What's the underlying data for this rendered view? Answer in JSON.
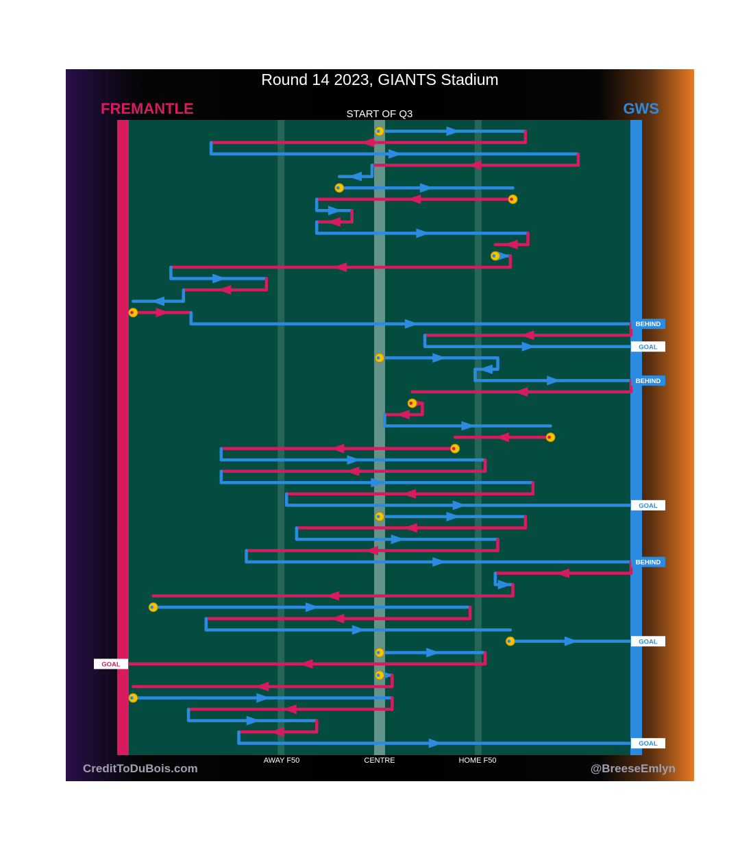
{
  "header": {
    "title": "Round 14 2023, GIANTS Stadium",
    "team_left": "FREMANTLE",
    "team_right": "GWS",
    "quarter_label": "START OF Q3"
  },
  "footer": {
    "credit_left": "CreditToDuBois.com",
    "credit_right": "@BreeseEmlyn"
  },
  "colors": {
    "fremantle": "#d81b5f",
    "gws": "#2b8be0",
    "field": "#034c3f",
    "stoppage": "#f5c400",
    "tag_bg": "#ffffff"
  },
  "chart_data": {
    "type": "possession-chain",
    "title": "Round 14 2023, GIANTS Stadium",
    "quarter": "START OF Q3",
    "x_axis": {
      "description": "field position, 0 = Fremantle goal, 100 = GWS goal",
      "range": [
        0,
        100
      ],
      "zone_labels": [
        {
          "label": "AWAY F50",
          "x": 30.4
        },
        {
          "label": "CENTRE",
          "x": 50.0
        },
        {
          "label": "HOME F50",
          "x": 69.6
        }
      ]
    },
    "chains": [
      {
        "team": "GWS",
        "segments": [
          {
            "from": 50,
            "to": 79
          }
        ],
        "start": "stoppage"
      },
      {
        "team": "Fremantle",
        "segments": [
          {
            "from": 79,
            "to": 16.5
          }
        ]
      },
      {
        "team": "GWS",
        "segments": [
          {
            "from": 16.5,
            "to": 89.5
          }
        ]
      },
      {
        "team": "Fremantle",
        "segments": [
          {
            "from": 89.5,
            "to": 48.5
          }
        ]
      },
      {
        "team": "GWS",
        "segments": [
          {
            "from": 48.5,
            "to": 42
          }
        ]
      },
      {
        "team": "GWS",
        "segments": [
          {
            "from": 42,
            "to": 76.5
          }
        ],
        "start": "stoppage"
      },
      {
        "team": "Fremantle",
        "segments": [
          {
            "from": 76.5,
            "to": 37.5
          }
        ],
        "start": "stoppage"
      },
      {
        "team": "GWS",
        "segments": [
          {
            "from": 37.5,
            "to": 44.5
          }
        ]
      },
      {
        "team": "Fremantle",
        "segments": [
          {
            "from": 44.5,
            "to": 37.5
          }
        ]
      },
      {
        "team": "GWS",
        "segments": [
          {
            "from": 37.5,
            "to": 79.5
          }
        ]
      },
      {
        "team": "Fremantle",
        "segments": [
          {
            "from": 79.5,
            "to": 73
          }
        ]
      },
      {
        "team": "GWS",
        "segments": [
          {
            "from": 73,
            "to": 76
          }
        ],
        "start": "stoppage"
      },
      {
        "team": "Fremantle",
        "segments": [
          {
            "from": 76,
            "to": 8.5
          }
        ]
      },
      {
        "team": "GWS",
        "segments": [
          {
            "from": 8.5,
            "to": 27.5
          }
        ]
      },
      {
        "team": "Fremantle",
        "segments": [
          {
            "from": 27.5,
            "to": 11
          }
        ]
      },
      {
        "team": "GWS",
        "segments": [
          {
            "from": 11,
            "to": 1
          }
        ]
      },
      {
        "team": "Fremantle",
        "segments": [
          {
            "from": 1,
            "to": 12.5
          }
        ],
        "start": "stoppage"
      },
      {
        "team": "GWS",
        "segments": [
          {
            "from": 12.5,
            "to": 100
          }
        ],
        "end": "BEHIND"
      },
      {
        "team": "Fremantle",
        "segments": [
          {
            "from": 100,
            "to": 59
          }
        ]
      },
      {
        "team": "GWS",
        "segments": [
          {
            "from": 59,
            "to": 100
          }
        ],
        "end": "GOAL"
      },
      {
        "team": "GWS",
        "segments": [
          {
            "from": 50,
            "to": 73.5
          }
        ],
        "start": "stoppage"
      },
      {
        "team": "GWS",
        "segments": [
          {
            "from": 73.5,
            "to": 69
          }
        ]
      },
      {
        "team": "GWS",
        "segments": [
          {
            "from": 69,
            "to": 100
          }
        ],
        "end": "BEHIND"
      },
      {
        "team": "Fremantle",
        "segments": [
          {
            "from": 100,
            "to": 56.5
          }
        ]
      },
      {
        "team": "Fremantle",
        "segments": [
          {
            "from": 56.5,
            "to": 58.5
          }
        ],
        "start": "stoppage"
      },
      {
        "team": "Fremantle",
        "segments": [
          {
            "from": 58.5,
            "to": 51
          }
        ]
      },
      {
        "team": "GWS",
        "segments": [
          {
            "from": 51,
            "to": 84
          }
        ]
      },
      {
        "team": "Fremantle",
        "segments": [
          {
            "from": 84,
            "to": 65
          }
        ],
        "start": "stoppage"
      },
      {
        "team": "Fremantle",
        "segments": [
          {
            "from": 65,
            "to": 18.5
          }
        ],
        "start": "stoppage"
      },
      {
        "team": "GWS",
        "segments": [
          {
            "from": 18.5,
            "to": 71
          }
        ]
      },
      {
        "team": "Fremantle",
        "segments": [
          {
            "from": 71,
            "to": 18.5
          }
        ]
      },
      {
        "team": "GWS",
        "segments": [
          {
            "from": 18.5,
            "to": 80.5
          }
        ]
      },
      {
        "team": "Fremantle",
        "segments": [
          {
            "from": 80.5,
            "to": 31.5
          }
        ]
      },
      {
        "team": "GWS",
        "segments": [
          {
            "from": 31.5,
            "to": 100
          }
        ],
        "end": "GOAL"
      },
      {
        "team": "GWS",
        "segments": [
          {
            "from": 50,
            "to": 79
          }
        ],
        "start": "stoppage"
      },
      {
        "team": "Fremantle",
        "segments": [
          {
            "from": 79,
            "to": 33.5
          }
        ]
      },
      {
        "team": "GWS",
        "segments": [
          {
            "from": 33.5,
            "to": 73.5
          }
        ]
      },
      {
        "team": "Fremantle",
        "segments": [
          {
            "from": 73.5,
            "to": 23.5
          }
        ]
      },
      {
        "team": "GWS",
        "segments": [
          {
            "from": 23.5,
            "to": 100
          }
        ],
        "end": "BEHIND"
      },
      {
        "team": "Fremantle",
        "segments": [
          {
            "from": 100,
            "to": 73
          }
        ]
      },
      {
        "team": "GWS",
        "segments": [
          {
            "from": 73,
            "to": 76.5
          }
        ]
      },
      {
        "team": "Fremantle",
        "segments": [
          {
            "from": 76.5,
            "to": 5
          }
        ]
      },
      {
        "team": "GWS",
        "segments": [
          {
            "from": 5,
            "to": 68
          }
        ],
        "start": "stoppage"
      },
      {
        "team": "Fremantle",
        "segments": [
          {
            "from": 68,
            "to": 15.5
          }
        ]
      },
      {
        "team": "GWS",
        "segments": [
          {
            "from": 15.5,
            "to": 76
          }
        ]
      },
      {
        "team": "GWS",
        "segments": [
          {
            "from": 76,
            "to": 100
          }
        ],
        "start": "stoppage",
        "end": "GOAL"
      },
      {
        "team": "GWS",
        "segments": [
          {
            "from": 50,
            "to": 71
          }
        ],
        "start": "stoppage"
      },
      {
        "team": "Fremantle",
        "segments": [
          {
            "from": 71,
            "to": 0
          }
        ],
        "end": "GOAL"
      },
      {
        "team": "GWS",
        "segments": [
          {
            "from": 50,
            "to": 52.5
          }
        ],
        "start": "stoppage"
      },
      {
        "team": "Fremantle",
        "segments": [
          {
            "from": 52.5,
            "to": 1
          }
        ]
      },
      {
        "team": "GWS",
        "segments": [
          {
            "from": 1,
            "to": 52.5
          }
        ],
        "start": "stoppage"
      },
      {
        "team": "Fremantle",
        "segments": [
          {
            "from": 52.5,
            "to": 12
          }
        ]
      },
      {
        "team": "GWS",
        "segments": [
          {
            "from": 12,
            "to": 37.5
          }
        ]
      },
      {
        "team": "Fremantle",
        "segments": [
          {
            "from": 37.5,
            "to": 22
          }
        ]
      },
      {
        "team": "GWS",
        "segments": [
          {
            "from": 22,
            "to": 100
          }
        ],
        "end": "GOAL"
      }
    ]
  }
}
